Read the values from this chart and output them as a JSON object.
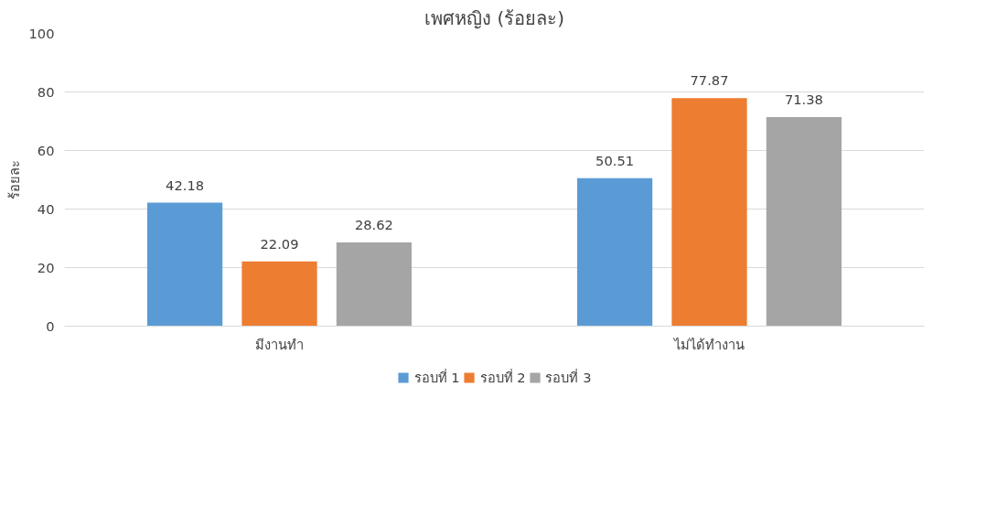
{
  "chart_data": {
    "type": "bar",
    "title": "เพศหญิง (ร้อยละ)",
    "ylabel": "ร้อยละ",
    "categories": [
      "มีงานทำ",
      "ไม่ได้ทำงาน"
    ],
    "series": [
      {
        "name": "รอบที่ 1",
        "color": "#5b9bd5",
        "values": [
          42.18,
          50.51
        ]
      },
      {
        "name": "รอบที่ 2",
        "color": "#ed7d31",
        "values": [
          22.09,
          77.87
        ]
      },
      {
        "name": "รอบที่ 3",
        "color": "#a5a5a5",
        "values": [
          28.62,
          71.38
        ]
      }
    ],
    "ylim": [
      0,
      100
    ],
    "yticks": [
      0,
      20,
      40,
      60,
      80,
      100
    ],
    "grid": "y",
    "legend": "bottom",
    "data_labels": true
  }
}
